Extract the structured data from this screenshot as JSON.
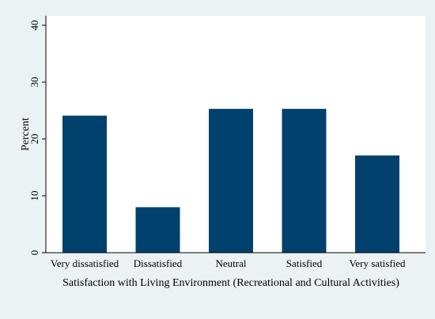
{
  "chart_data": {
    "type": "bar",
    "categories": [
      "Very dissatisfied",
      "Dissatisfied",
      "Neutral",
      "Satisfied",
      "Very satisfied"
    ],
    "values": [
      24.1,
      8.0,
      25.3,
      25.3,
      17.1
    ],
    "xlabel": "Satisfaction with Living Environment (Recreational and Cultural Activities)",
    "ylabel": "Percent",
    "ylim": [
      0,
      40
    ],
    "yticks": [
      0,
      10,
      20,
      30,
      40
    ],
    "grid": false,
    "bar_color": "#00416d",
    "plot_background": "#ffffff",
    "figure_background": "#eaf2f3"
  }
}
